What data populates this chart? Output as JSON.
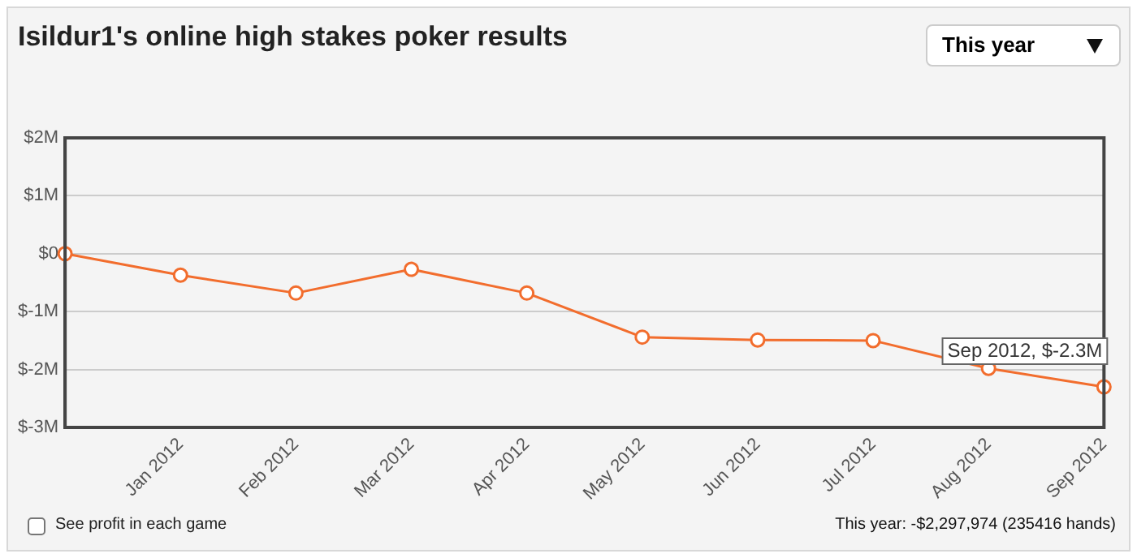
{
  "chart_data": {
    "type": "line",
    "title": "Isildur1's online high stakes poker results",
    "categories": [
      null,
      "Jan 2012",
      "Feb 2012",
      "Mar 2012",
      "Apr 2012",
      "May 2012",
      "Jun 2012",
      "Jul 2012",
      "Aug 2012",
      "Sep 2012"
    ],
    "series": [
      {
        "color": "#f26d2d",
        "values": [
          0,
          -0.37,
          -0.68,
          -0.27,
          -0.68,
          -1.44,
          -1.49,
          -1.5,
          -1.98,
          -2.3
        ]
      }
    ],
    "ylim": [
      -3,
      2
    ],
    "yticks": [
      {
        "value": -3,
        "label": "$-3M"
      },
      {
        "value": -2,
        "label": "$-2M"
      },
      {
        "value": -1,
        "label": "$-1M"
      },
      {
        "value": 0,
        "label": "$0"
      },
      {
        "value": 1,
        "label": "$1M"
      },
      {
        "value": 2,
        "label": "$2M"
      }
    ],
    "grid": "y",
    "legend": false,
    "marker": "circle",
    "line_style": "solid",
    "annotations": [
      {
        "text": "Sep 2012, $-2.3M",
        "x": "Sep 2012",
        "y": -2.3
      },
      "This year",
      "See profit in each game",
      "This year: -$2,297,974 (235416 hands)"
    ]
  }
}
